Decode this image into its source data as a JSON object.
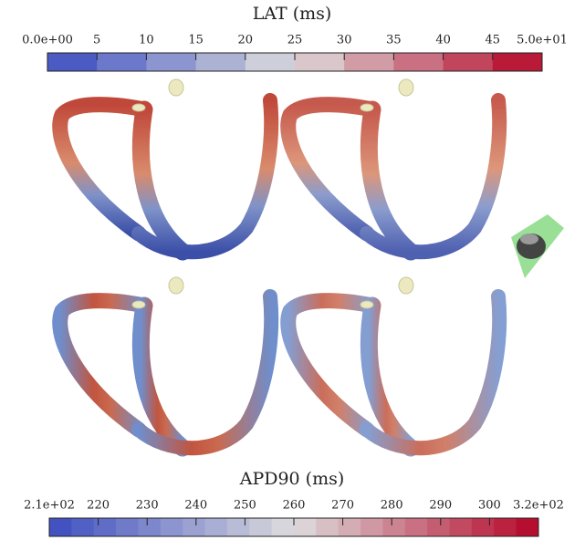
{
  "colorbars": [
    {
      "title": "LAT (ms)",
      "ticks": [
        "0.0e+00",
        "5",
        "10",
        "15",
        "20",
        "25",
        "30",
        "35",
        "40",
        "45",
        "5.0e+01"
      ]
    },
    {
      "title": "APD90 (ms)",
      "ticks": [
        "2.1e+02",
        "220",
        "230",
        "240",
        "250",
        "260",
        "270",
        "280",
        "290",
        "300",
        "3.2e+02"
      ]
    }
  ]
}
